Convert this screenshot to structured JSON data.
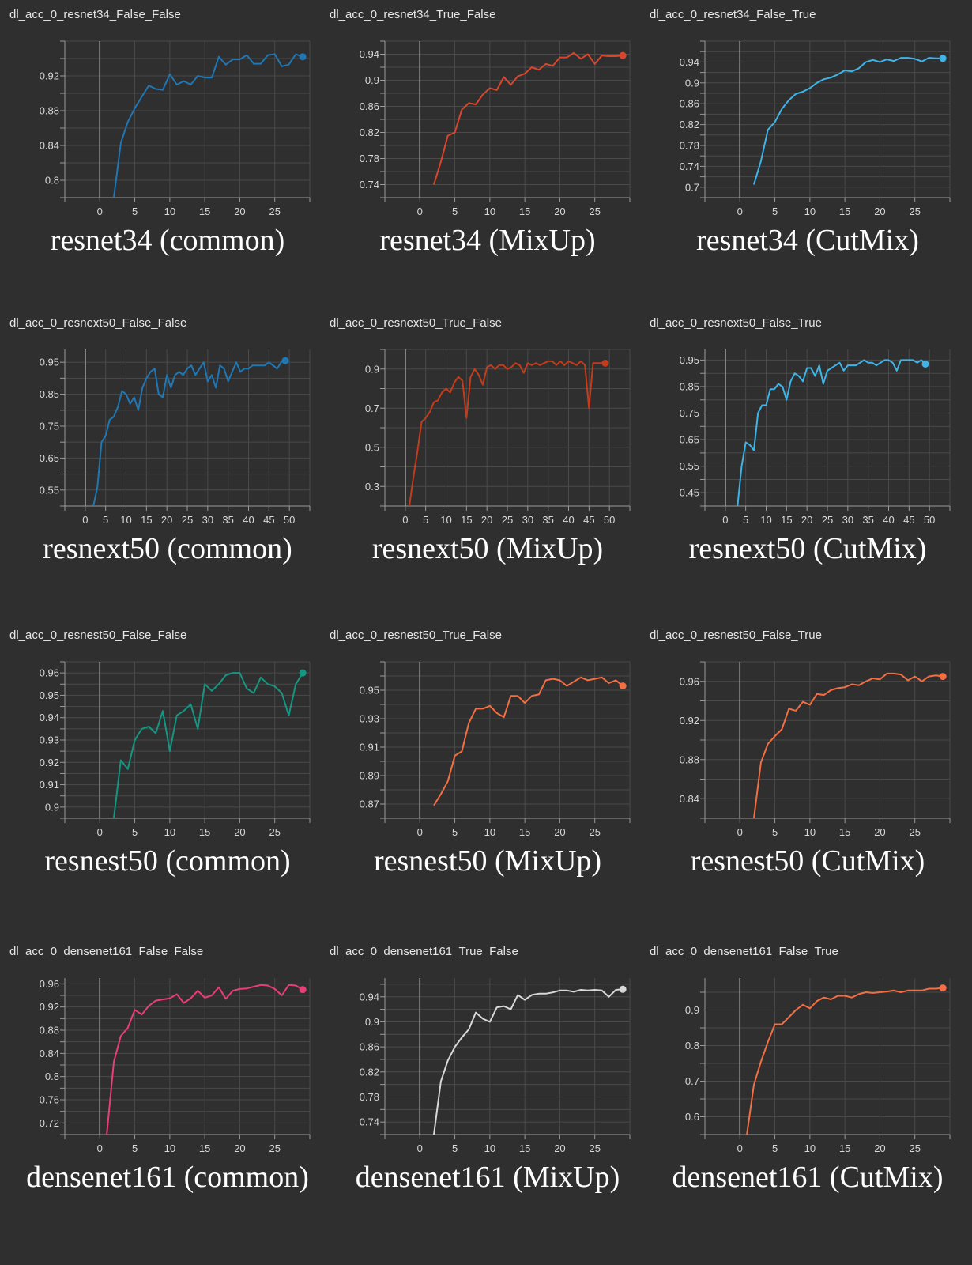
{
  "chart_data": [
    {
      "type": "line",
      "title": "dl_acc_0_resnet34_False_False",
      "caption": "resnet34 (common)",
      "color": "#1f77b4",
      "xlim": [
        -5,
        30
      ],
      "ylim": [
        0.78,
        0.96
      ],
      "xticks": [
        0,
        5,
        10,
        15,
        20,
        25
      ],
      "yticks": [
        0.8,
        0.84,
        0.88,
        0.92
      ],
      "ytick_labels": [
        "0.8",
        "0.84",
        "0.88",
        "0.92"
      ],
      "x": [
        2,
        3,
        4,
        5,
        6,
        7,
        8,
        9,
        10,
        11,
        12,
        13,
        14,
        15,
        16,
        17,
        18,
        19,
        20,
        21,
        22,
        23,
        24,
        25,
        26,
        27,
        28,
        29
      ],
      "y": [
        0.78,
        0.843,
        0.867,
        0.883,
        0.896,
        0.909,
        0.905,
        0.904,
        0.922,
        0.91,
        0.914,
        0.91,
        0.92,
        0.918,
        0.918,
        0.942,
        0.933,
        0.939,
        0.939,
        0.944,
        0.934,
        0.934,
        0.944,
        0.945,
        0.931,
        0.933,
        0.945,
        0.942
      ]
    },
    {
      "type": "line",
      "title": "dl_acc_0_resnet34_True_False",
      "caption": "resnet34 (MixUp)",
      "color": "#d9462b",
      "xlim": [
        -5,
        30
      ],
      "ylim": [
        0.72,
        0.96
      ],
      "xticks": [
        0,
        5,
        10,
        15,
        20,
        25
      ],
      "yticks": [
        0.74,
        0.78,
        0.82,
        0.86,
        0.9,
        0.94
      ],
      "ytick_labels": [
        "0.74",
        "0.78",
        "0.82",
        "0.86",
        "0.9",
        "0.94"
      ],
      "x": [
        2,
        3,
        4,
        5,
        6,
        7,
        8,
        9,
        10,
        11,
        12,
        13,
        14,
        15,
        16,
        17,
        18,
        19,
        20,
        21,
        22,
        23,
        24,
        25,
        26,
        27,
        28,
        29
      ],
      "y": [
        0.74,
        0.775,
        0.815,
        0.82,
        0.855,
        0.865,
        0.863,
        0.878,
        0.888,
        0.885,
        0.905,
        0.893,
        0.906,
        0.91,
        0.92,
        0.916,
        0.925,
        0.922,
        0.935,
        0.935,
        0.942,
        0.933,
        0.94,
        0.925,
        0.938,
        0.937,
        0.937,
        0.938
      ]
    },
    {
      "type": "line",
      "title": "dl_acc_0_resnet34_False_True",
      "caption": "resnet34 (CutMix)",
      "color": "#3fb4e8",
      "xlim": [
        -5,
        30
      ],
      "ylim": [
        0.68,
        0.98
      ],
      "xticks": [
        0,
        5,
        10,
        15,
        20,
        25
      ],
      "yticks": [
        0.7,
        0.74,
        0.78,
        0.82,
        0.86,
        0.9,
        0.94
      ],
      "ytick_labels": [
        "0.7",
        "0.74",
        "0.78",
        "0.82",
        "0.86",
        "0.9",
        "0.94"
      ],
      "x": [
        2,
        3,
        4,
        5,
        6,
        7,
        8,
        9,
        10,
        11,
        12,
        13,
        14,
        15,
        16,
        17,
        18,
        19,
        20,
        21,
        22,
        23,
        24,
        25,
        26,
        27,
        28,
        29
      ],
      "y": [
        0.705,
        0.75,
        0.81,
        0.825,
        0.85,
        0.867,
        0.879,
        0.883,
        0.89,
        0.9,
        0.907,
        0.91,
        0.916,
        0.924,
        0.922,
        0.928,
        0.94,
        0.944,
        0.94,
        0.945,
        0.942,
        0.948,
        0.948,
        0.946,
        0.941,
        0.948,
        0.947,
        0.947
      ]
    },
    {
      "type": "line",
      "title": "dl_acc_0_resnext50_False_False",
      "caption": "resnext50 (common)",
      "color": "#1f77b4",
      "xlim": [
        -5,
        55
      ],
      "ylim": [
        0.5,
        0.99
      ],
      "xticks": [
        0,
        5,
        10,
        15,
        20,
        25,
        30,
        35,
        40,
        45,
        50
      ],
      "yticks": [
        0.55,
        0.65,
        0.75,
        0.85,
        0.95
      ],
      "ytick_labels": [
        "0.55",
        "0.65",
        "0.75",
        "0.85",
        "0.95"
      ],
      "x": [
        2,
        3,
        4,
        5,
        6,
        7,
        8,
        9,
        10,
        11,
        12,
        13,
        14,
        15,
        16,
        17,
        18,
        19,
        20,
        21,
        22,
        23,
        24,
        25,
        26,
        27,
        28,
        29,
        30,
        31,
        32,
        33,
        34,
        35,
        36,
        37,
        38,
        39,
        40,
        41,
        42,
        43,
        44,
        45,
        46,
        47,
        48,
        49
      ],
      "y": [
        0.5,
        0.56,
        0.7,
        0.72,
        0.77,
        0.78,
        0.81,
        0.86,
        0.85,
        0.82,
        0.84,
        0.8,
        0.87,
        0.9,
        0.92,
        0.93,
        0.85,
        0.84,
        0.91,
        0.87,
        0.91,
        0.92,
        0.91,
        0.93,
        0.94,
        0.91,
        0.93,
        0.95,
        0.89,
        0.91,
        0.87,
        0.94,
        0.93,
        0.89,
        0.92,
        0.95,
        0.92,
        0.93,
        0.93,
        0.94,
        0.94,
        0.94,
        0.94,
        0.95,
        0.94,
        0.93,
        0.95,
        0.955
      ]
    },
    {
      "type": "line",
      "title": "dl_acc_0_resnext50_True_False",
      "caption": "resnext50 (MixUp)",
      "color": "#c43c1c",
      "xlim": [
        -5,
        55
      ],
      "ylim": [
        0.2,
        1.0
      ],
      "xticks": [
        0,
        5,
        10,
        15,
        20,
        25,
        30,
        35,
        40,
        45,
        50
      ],
      "yticks": [
        0.3,
        0.5,
        0.7,
        0.9
      ],
      "ytick_labels": [
        "0.3",
        "0.5",
        "0.7",
        "0.9"
      ],
      "x": [
        1,
        2,
        3,
        4,
        5,
        6,
        7,
        8,
        9,
        10,
        11,
        12,
        13,
        14,
        15,
        16,
        17,
        18,
        19,
        20,
        21,
        22,
        23,
        24,
        25,
        26,
        27,
        28,
        29,
        30,
        31,
        32,
        33,
        34,
        35,
        36,
        37,
        38,
        39,
        40,
        41,
        42,
        43,
        44,
        45,
        46,
        47,
        48,
        49
      ],
      "y": [
        0.2,
        0.35,
        0.48,
        0.63,
        0.65,
        0.68,
        0.73,
        0.74,
        0.78,
        0.8,
        0.78,
        0.83,
        0.86,
        0.84,
        0.65,
        0.86,
        0.9,
        0.87,
        0.82,
        0.91,
        0.92,
        0.9,
        0.92,
        0.92,
        0.9,
        0.91,
        0.93,
        0.92,
        0.88,
        0.93,
        0.92,
        0.93,
        0.92,
        0.93,
        0.94,
        0.94,
        0.92,
        0.94,
        0.92,
        0.94,
        0.93,
        0.92,
        0.94,
        0.92,
        0.7,
        0.93,
        0.93,
        0.93,
        0.93
      ]
    },
    {
      "type": "line",
      "title": "dl_acc_0_resnext50_False_True",
      "caption": "resnext50 (CutMix)",
      "color": "#3fb4e8",
      "xlim": [
        -5,
        55
      ],
      "ylim": [
        0.4,
        0.99
      ],
      "xticks": [
        0,
        5,
        10,
        15,
        20,
        25,
        30,
        35,
        40,
        45,
        50
      ],
      "yticks": [
        0.45,
        0.55,
        0.65,
        0.75,
        0.85,
        0.95
      ],
      "ytick_labels": [
        "0.45",
        "0.55",
        "0.65",
        "0.75",
        "0.85",
        "0.95"
      ],
      "x": [
        3,
        4,
        5,
        6,
        7,
        8,
        9,
        10,
        11,
        12,
        13,
        14,
        15,
        16,
        17,
        18,
        19,
        20,
        21,
        22,
        23,
        24,
        25,
        26,
        27,
        28,
        29,
        30,
        31,
        32,
        33,
        34,
        35,
        36,
        37,
        38,
        39,
        40,
        41,
        42,
        43,
        44,
        45,
        46,
        47,
        48,
        49
      ],
      "y": [
        0.4,
        0.55,
        0.64,
        0.63,
        0.61,
        0.75,
        0.78,
        0.78,
        0.84,
        0.84,
        0.86,
        0.85,
        0.8,
        0.87,
        0.9,
        0.89,
        0.87,
        0.92,
        0.92,
        0.89,
        0.93,
        0.86,
        0.91,
        0.92,
        0.93,
        0.94,
        0.91,
        0.93,
        0.93,
        0.93,
        0.94,
        0.95,
        0.94,
        0.94,
        0.93,
        0.94,
        0.95,
        0.95,
        0.94,
        0.91,
        0.95,
        0.95,
        0.95,
        0.95,
        0.94,
        0.95,
        0.935
      ]
    },
    {
      "type": "line",
      "title": "dl_acc_0_resnest50_False_False",
      "caption": "resnest50 (common)",
      "color": "#159683",
      "xlim": [
        -5,
        30
      ],
      "ylim": [
        0.895,
        0.965
      ],
      "xticks": [
        0,
        5,
        10,
        15,
        20,
        25
      ],
      "yticks": [
        0.9,
        0.91,
        0.92,
        0.93,
        0.94,
        0.95,
        0.96
      ],
      "ytick_labels": [
        "0.9",
        "0.91",
        "0.92",
        "0.93",
        "0.94",
        "0.95",
        "0.96"
      ],
      "x": [
        2,
        3,
        4,
        5,
        6,
        7,
        8,
        9,
        10,
        11,
        12,
        13,
        14,
        15,
        16,
        17,
        18,
        19,
        20,
        21,
        22,
        23,
        24,
        25,
        26,
        27,
        28,
        29
      ],
      "y": [
        0.895,
        0.921,
        0.917,
        0.93,
        0.935,
        0.936,
        0.933,
        0.943,
        0.925,
        0.941,
        0.943,
        0.946,
        0.935,
        0.955,
        0.952,
        0.955,
        0.959,
        0.96,
        0.96,
        0.953,
        0.951,
        0.958,
        0.955,
        0.954,
        0.951,
        0.941,
        0.955,
        0.96
      ]
    },
    {
      "type": "line",
      "title": "dl_acc_0_resnest50_True_False",
      "caption": "resnest50 (MixUp)",
      "color": "#f36f43",
      "xlim": [
        -5,
        30
      ],
      "ylim": [
        0.86,
        0.97
      ],
      "xticks": [
        0,
        5,
        10,
        15,
        20,
        25
      ],
      "yticks": [
        0.87,
        0.89,
        0.91,
        0.93,
        0.95
      ],
      "ytick_labels": [
        "0.87",
        "0.89",
        "0.91",
        "0.93",
        "0.95"
      ],
      "x": [
        2,
        3,
        4,
        5,
        6,
        7,
        8,
        9,
        10,
        11,
        12,
        13,
        14,
        15,
        16,
        17,
        18,
        19,
        20,
        21,
        22,
        23,
        24,
        25,
        26,
        27,
        28,
        29
      ],
      "y": [
        0.869,
        0.877,
        0.886,
        0.904,
        0.907,
        0.927,
        0.937,
        0.937,
        0.939,
        0.934,
        0.931,
        0.946,
        0.946,
        0.941,
        0.946,
        0.947,
        0.957,
        0.958,
        0.957,
        0.953,
        0.956,
        0.959,
        0.957,
        0.958,
        0.959,
        0.955,
        0.957,
        0.953
      ]
    },
    {
      "type": "line",
      "title": "dl_acc_0_resnest50_False_True",
      "caption": "resnest50 (CutMix)",
      "color": "#f36f43",
      "xlim": [
        -5,
        30
      ],
      "ylim": [
        0.82,
        0.98
      ],
      "xticks": [
        0,
        5,
        10,
        15,
        20,
        25
      ],
      "yticks": [
        0.84,
        0.88,
        0.92,
        0.96
      ],
      "ytick_labels": [
        "0.84",
        "0.88",
        "0.92",
        "0.96"
      ],
      "x": [
        2,
        3,
        4,
        5,
        6,
        7,
        8,
        9,
        10,
        11,
        12,
        13,
        14,
        15,
        16,
        17,
        18,
        19,
        20,
        21,
        22,
        23,
        24,
        25,
        26,
        27,
        28,
        29
      ],
      "y": [
        0.82,
        0.877,
        0.896,
        0.904,
        0.911,
        0.932,
        0.93,
        0.939,
        0.936,
        0.947,
        0.946,
        0.951,
        0.953,
        0.954,
        0.957,
        0.956,
        0.96,
        0.963,
        0.962,
        0.968,
        0.968,
        0.967,
        0.961,
        0.965,
        0.96,
        0.965,
        0.966,
        0.965
      ]
    },
    {
      "type": "line",
      "title": "dl_acc_0_densenet161_False_False",
      "caption": "densenet161 (common)",
      "color": "#e83e7a",
      "xlim": [
        -5,
        30
      ],
      "ylim": [
        0.7,
        0.97
      ],
      "xticks": [
        0,
        5,
        10,
        15,
        20,
        25
      ],
      "yticks": [
        0.72,
        0.76,
        0.8,
        0.84,
        0.88,
        0.92,
        0.96
      ],
      "ytick_labels": [
        "0.72",
        "0.76",
        "0.8",
        "0.84",
        "0.88",
        "0.92",
        "0.96"
      ],
      "x": [
        1,
        2,
        3,
        4,
        5,
        6,
        7,
        8,
        9,
        10,
        11,
        12,
        13,
        14,
        15,
        16,
        17,
        18,
        19,
        20,
        21,
        22,
        23,
        24,
        25,
        26,
        27,
        28,
        29
      ],
      "y": [
        0.7,
        0.825,
        0.87,
        0.884,
        0.915,
        0.907,
        0.922,
        0.931,
        0.933,
        0.935,
        0.942,
        0.927,
        0.935,
        0.948,
        0.936,
        0.94,
        0.954,
        0.934,
        0.948,
        0.951,
        0.952,
        0.955,
        0.958,
        0.957,
        0.951,
        0.94,
        0.958,
        0.957,
        0.95
      ]
    },
    {
      "type": "line",
      "title": "dl_acc_0_densenet161_True_False",
      "caption": "densenet161 (MixUp)",
      "color": "#d8d8d8",
      "xlim": [
        -5,
        30
      ],
      "ylim": [
        0.72,
        0.97
      ],
      "xticks": [
        0,
        5,
        10,
        15,
        20,
        25
      ],
      "yticks": [
        0.74,
        0.78,
        0.82,
        0.86,
        0.9,
        0.94
      ],
      "ytick_labels": [
        "0.74",
        "0.78",
        "0.82",
        "0.86",
        "0.9",
        "0.94"
      ],
      "x": [
        2,
        3,
        4,
        5,
        6,
        7,
        8,
        9,
        10,
        11,
        12,
        13,
        14,
        15,
        16,
        17,
        18,
        19,
        20,
        21,
        22,
        23,
        24,
        25,
        26,
        27,
        28,
        29
      ],
      "y": [
        0.72,
        0.805,
        0.838,
        0.86,
        0.875,
        0.888,
        0.915,
        0.905,
        0.9,
        0.923,
        0.925,
        0.92,
        0.943,
        0.935,
        0.943,
        0.945,
        0.945,
        0.947,
        0.95,
        0.95,
        0.948,
        0.951,
        0.95,
        0.951,
        0.95,
        0.94,
        0.951,
        0.952
      ]
    },
    {
      "type": "line",
      "title": "dl_acc_0_densenet161_False_True",
      "caption": "densenet161 (CutMix)",
      "color": "#f36f43",
      "xlim": [
        -5,
        30
      ],
      "ylim": [
        0.55,
        0.99
      ],
      "xticks": [
        0,
        5,
        10,
        15,
        20,
        25
      ],
      "yticks": [
        0.6,
        0.7,
        0.8,
        0.9
      ],
      "ytick_labels": [
        "0.6",
        "0.7",
        "0.8",
        "0.9"
      ],
      "x": [
        1,
        2,
        3,
        4,
        5,
        6,
        7,
        8,
        9,
        10,
        11,
        12,
        13,
        14,
        15,
        16,
        17,
        18,
        19,
        20,
        21,
        22,
        23,
        24,
        25,
        26,
        27,
        28,
        29
      ],
      "y": [
        0.55,
        0.69,
        0.755,
        0.81,
        0.86,
        0.86,
        0.88,
        0.9,
        0.915,
        0.905,
        0.925,
        0.935,
        0.93,
        0.94,
        0.94,
        0.935,
        0.945,
        0.95,
        0.948,
        0.95,
        0.952,
        0.955,
        0.95,
        0.955,
        0.955,
        0.955,
        0.96,
        0.96,
        0.962
      ]
    }
  ]
}
